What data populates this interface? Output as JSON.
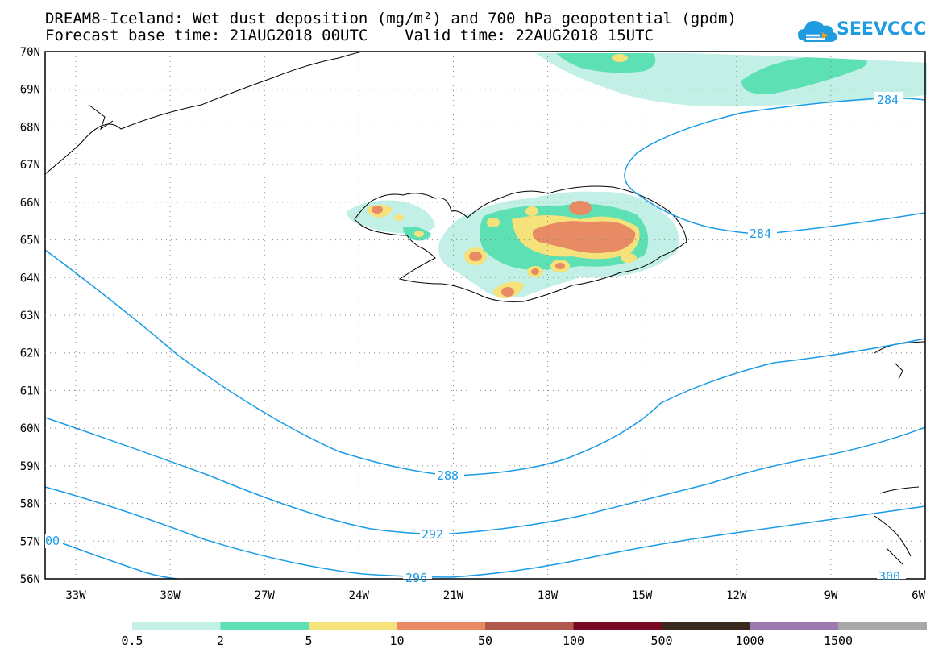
{
  "title": {
    "line1": "DREAM8-Iceland: Wet dust deposition (mg/m²) and 700 hPa geopotential (gpdm)",
    "line2": "Forecast base time: 21AUG2018 00UTC    Valid time: 22AUG2018 15UTC"
  },
  "logo": {
    "text": "SEEVCCC",
    "icon": "cloud-logo-icon"
  },
  "map": {
    "lat_labels": [
      "70N",
      "69N",
      "68N",
      "67N",
      "66N",
      "65N",
      "64N",
      "63N",
      "62N",
      "61N",
      "60N",
      "59N",
      "58N",
      "57N",
      "56N"
    ],
    "lon_labels": [
      "33W",
      "30W",
      "27W",
      "24W",
      "21W",
      "18W",
      "15W",
      "12W",
      "9W",
      "6W"
    ],
    "contours": [
      {
        "value": "284",
        "label": "284"
      },
      {
        "value": "288",
        "label": "288"
      },
      {
        "value": "292",
        "label": "292"
      },
      {
        "value": "296",
        "label": "296"
      },
      {
        "value": "300",
        "label": "300"
      },
      {
        "value": "300-left",
        "label": "00"
      }
    ],
    "colors": {
      "contour": "#1a9be6",
      "c0": "#c2efe6",
      "c1": "#5de0b4",
      "c2": "#f6e27a",
      "c3": "#e88b64",
      "c4": "#b05a4e"
    }
  },
  "legend": {
    "labels": [
      "0.5",
      "2",
      "5",
      "10",
      "50",
      "100",
      "500",
      "1000",
      "1500"
    ],
    "colors": [
      "#c2efe6",
      "#5de0b4",
      "#f6e27a",
      "#e88b64",
      "#b05a4e",
      "#7a0a24",
      "#3a2a1e",
      "#9a7ab0",
      "#a8a8a8"
    ]
  }
}
